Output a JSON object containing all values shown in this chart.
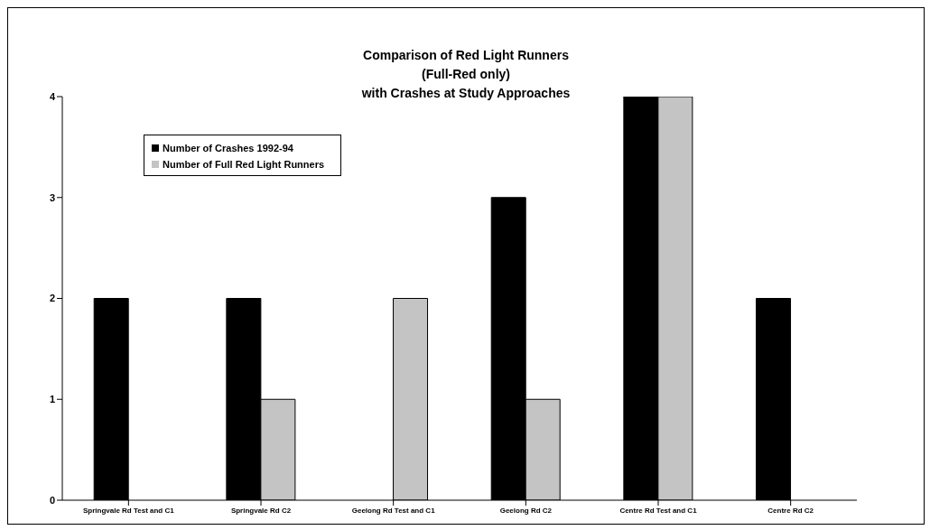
{
  "chart_data": {
    "type": "bar",
    "title": "Comparison of Red Light Runners\n(Full-Red only)\nwith Crashes at Study Approaches",
    "categories": [
      "Springvale Rd Test and C1",
      "Springvale Rd C2",
      "Geelong Rd Test and C1",
      "Geelong Rd C2",
      "Centre Rd Test and C1",
      "Centre Rd C2"
    ],
    "series": [
      {
        "name": "Number of Crashes 1992-94",
        "color": "#000000",
        "values": [
          2,
          2,
          0,
          3,
          4,
          2
        ]
      },
      {
        "name": "Number of Full Red Light Runners",
        "color": "#c4c4c4",
        "values": [
          0,
          1,
          2,
          1,
          4,
          0
        ]
      }
    ],
    "ylim": [
      0,
      4
    ],
    "yticks": [
      0,
      1,
      2,
      3,
      4
    ],
    "legend": "top left"
  }
}
